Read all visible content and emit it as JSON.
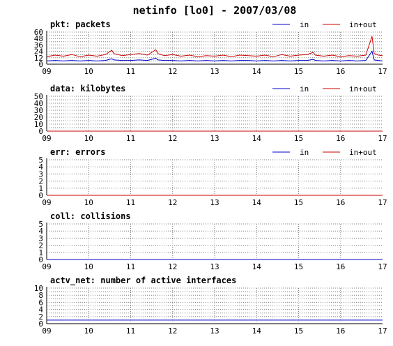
{
  "title": "netinfo [lo0] - 2007/03/08",
  "colors": {
    "in": "#0000cc",
    "in_out": "#cc0000",
    "grid": "#808080",
    "axis": "#000000"
  },
  "legend": {
    "in": "in",
    "in_out": "in+out"
  },
  "x_ticks": [
    "09",
    "10",
    "11",
    "12",
    "13",
    "14",
    "15",
    "16",
    "17"
  ],
  "chart_data": [
    {
      "type": "line",
      "title": "pkt: packets",
      "legend": true,
      "xlim": [
        9,
        17
      ],
      "ylim": [
        0,
        60
      ],
      "yticks": [
        0,
        12,
        24,
        36,
        48,
        60
      ],
      "yticklabels": [
        "0",
        "12",
        "24",
        "36",
        "48",
        "60"
      ],
      "ygrid": [
        6,
        18,
        30,
        42,
        54
      ],
      "x_tick_labels": [
        "09",
        "10",
        "11",
        "12",
        "13",
        "14",
        "15",
        "16",
        "17"
      ],
      "series": [
        {
          "name": "in",
          "x": [
            9.0,
            9.2,
            9.4,
            9.6,
            9.8,
            10.0,
            10.2,
            10.4,
            10.55,
            10.6,
            10.8,
            11.0,
            11.2,
            11.4,
            11.6,
            11.65,
            11.8,
            12.0,
            12.2,
            12.4,
            12.6,
            12.8,
            13.0,
            13.2,
            13.4,
            13.6,
            13.8,
            14.0,
            14.2,
            14.4,
            14.6,
            14.8,
            15.0,
            15.2,
            15.35,
            15.4,
            15.6,
            15.8,
            16.0,
            16.2,
            16.4,
            16.6,
            16.75,
            16.8,
            16.9,
            17.0
          ],
          "y": [
            6,
            7,
            6,
            7,
            6,
            7,
            6,
            7,
            10,
            8,
            7,
            7,
            8,
            7,
            11,
            8,
            7,
            7,
            6,
            7,
            6,
            7,
            6,
            7,
            6,
            7,
            7,
            6,
            7,
            6,
            7,
            6,
            7,
            7,
            9,
            7,
            6,
            7,
            6,
            7,
            6,
            7,
            24,
            8,
            7,
            6
          ]
        },
        {
          "name": "in+out",
          "x": [
            9.0,
            9.2,
            9.4,
            9.6,
            9.8,
            10.0,
            10.2,
            10.4,
            10.55,
            10.6,
            10.8,
            11.0,
            11.2,
            11.4,
            11.6,
            11.65,
            11.8,
            12.0,
            12.2,
            12.4,
            12.6,
            12.8,
            13.0,
            13.2,
            13.4,
            13.6,
            13.8,
            14.0,
            14.2,
            14.4,
            14.6,
            14.8,
            15.0,
            15.2,
            15.35,
            15.4,
            15.6,
            15.8,
            16.0,
            16.2,
            16.4,
            16.6,
            16.75,
            16.8,
            16.9,
            17.0
          ],
          "y": [
            14,
            17,
            15,
            18,
            14,
            17,
            15,
            18,
            26,
            20,
            16,
            18,
            20,
            17,
            27,
            20,
            16,
            18,
            15,
            17,
            14,
            16,
            15,
            17,
            14,
            17,
            16,
            15,
            17,
            14,
            18,
            15,
            17,
            18,
            22,
            17,
            15,
            17,
            14,
            16,
            15,
            17,
            52,
            20,
            17,
            16
          ]
        }
      ]
    },
    {
      "type": "line",
      "title": "data: kilobytes",
      "legend": true,
      "xlim": [
        9,
        17
      ],
      "ylim": [
        0,
        50
      ],
      "yticks": [
        0,
        10,
        20,
        30,
        40,
        50
      ],
      "yticklabels": [
        "0",
        "10",
        "20",
        "30",
        "40",
        "50"
      ],
      "ygrid": [
        5,
        15,
        25,
        35,
        45
      ],
      "x_tick_labels": [
        "09",
        "10",
        "11",
        "12",
        "13",
        "14",
        "15",
        "16",
        "17"
      ],
      "series": [
        {
          "name": "in",
          "x": [
            9,
            17
          ],
          "y": [
            0,
            0
          ]
        },
        {
          "name": "in+out",
          "x": [
            9,
            17
          ],
          "y": [
            0,
            0
          ]
        }
      ]
    },
    {
      "type": "line",
      "title": "err: errors",
      "legend": true,
      "xlim": [
        9,
        17
      ],
      "ylim": [
        0,
        5
      ],
      "yticks": [
        0,
        1,
        2,
        3,
        4,
        5
      ],
      "yticklabels": [
        "0",
        "1",
        "2",
        "3",
        "4",
        "5"
      ],
      "ygrid": [],
      "x_tick_labels": [
        "09",
        "10",
        "11",
        "12",
        "13",
        "14",
        "15",
        "16",
        "17"
      ],
      "series": [
        {
          "name": "in",
          "x": [
            9,
            17
          ],
          "y": [
            0,
            0
          ]
        },
        {
          "name": "in+out",
          "x": [
            9,
            17
          ],
          "y": [
            0,
            0
          ]
        }
      ]
    },
    {
      "type": "line",
      "title": "coll: collisions",
      "legend": false,
      "xlim": [
        9,
        17
      ],
      "ylim": [
        0,
        5
      ],
      "yticks": [
        0,
        1,
        2,
        3,
        4,
        5
      ],
      "yticklabels": [
        "0",
        "1",
        "2",
        "3",
        "4",
        "5"
      ],
      "ygrid": [],
      "x_tick_labels": [
        "09",
        "10",
        "11",
        "12",
        "13",
        "14",
        "15",
        "16",
        "17"
      ],
      "series": [
        {
          "x": [
            9,
            17
          ],
          "y": [
            0,
            0
          ]
        }
      ]
    },
    {
      "type": "line",
      "title": "actv_net: number of active interfaces",
      "legend": false,
      "xlim": [
        9,
        17
      ],
      "ylim": [
        0,
        10
      ],
      "yticks": [
        0,
        2,
        4,
        6,
        8,
        10
      ],
      "yticklabels": [
        "0",
        "2",
        "4",
        "6",
        "8",
        "10"
      ],
      "ygrid": [
        1,
        3,
        5,
        7,
        9
      ],
      "x_tick_labels": [
        "09",
        "10",
        "11",
        "12",
        "13",
        "14",
        "15",
        "16",
        "17"
      ],
      "series": [
        {
          "x": [
            9,
            17
          ],
          "y": [
            1,
            1
          ]
        }
      ]
    }
  ]
}
